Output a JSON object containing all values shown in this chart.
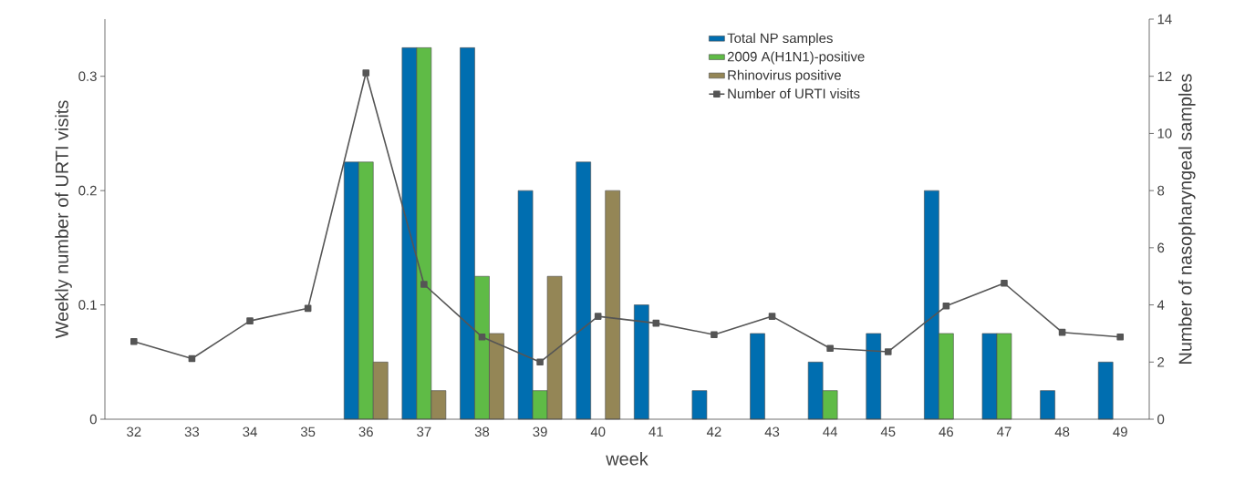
{
  "chart_data": {
    "type": "bar",
    "categories": [
      "32",
      "33",
      "34",
      "35",
      "36",
      "37",
      "38",
      "39",
      "40",
      "41",
      "42",
      "43",
      "44",
      "45",
      "46",
      "47",
      "48",
      "49"
    ],
    "xlabel": "week",
    "ylabel": "Weekly number of URTI visits",
    "y2label": "Number of nasopharyngeal samples",
    "ylim": [
      0,
      0.35
    ],
    "yticks": [
      0,
      0.1,
      0.2,
      0.3
    ],
    "y2lim": [
      0,
      14
    ],
    "y2ticks": [
      0,
      2,
      4,
      6,
      8,
      10,
      12,
      14
    ],
    "legend": "top",
    "marker": "square",
    "line_style": "solid",
    "series": [
      {
        "name": "Total NP samples",
        "color": "#006eb0",
        "axis": "y2",
        "values": [
          null,
          null,
          null,
          null,
          9,
          13,
          13,
          8,
          9,
          4,
          1,
          3,
          2,
          3,
          8,
          3,
          1,
          2
        ]
      },
      {
        "name": "2009 A(H1N1)-positive",
        "color": "#5fbb46",
        "axis": "y2",
        "values": [
          null,
          null,
          null,
          null,
          9,
          13,
          5,
          1,
          null,
          null,
          null,
          null,
          1,
          null,
          3,
          3,
          null,
          null
        ]
      },
      {
        "name": "Rhinovirus positive",
        "color": "#948656",
        "axis": "y2",
        "values": [
          null,
          null,
          null,
          null,
          2,
          1,
          3,
          5,
          8,
          null,
          null,
          null,
          null,
          null,
          null,
          null,
          null,
          null
        ]
      },
      {
        "name": "Number of URTI visits",
        "type": "line",
        "color": "#555555",
        "axis": "y",
        "values": [
          0.068,
          0.053,
          0.086,
          0.097,
          0.303,
          0.118,
          0.072,
          0.05,
          0.09,
          0.084,
          0.074,
          0.09,
          0.062,
          0.059,
          0.099,
          0.119,
          0.076,
          0.072
        ]
      }
    ]
  }
}
